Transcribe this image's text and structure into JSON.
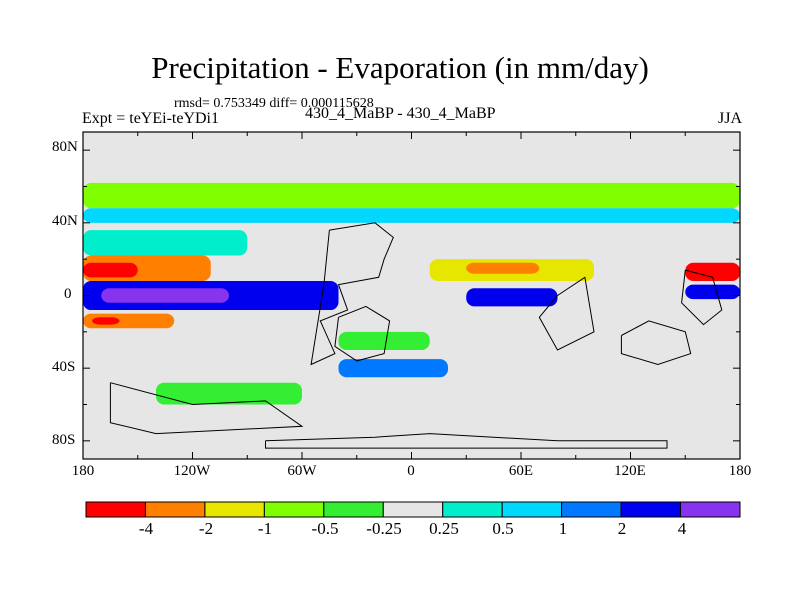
{
  "title": "Precipitation - Evaporation (in mm/day)",
  "stats_line": "rmsd= 0.753349 diff= 0.000115628",
  "left_label": "Expt = teYEi-teYDi1",
  "center_label": "430_4_MaBP - 430_4_MaBP",
  "right_label": "JJA",
  "lat_ticks": [
    "80N",
    "40N",
    "0",
    "40S",
    "80S"
  ],
  "lon_ticks": [
    "180",
    "120W",
    "60W",
    "0",
    "60E",
    "120E",
    "180"
  ],
  "colorbar": {
    "labels": [
      "-4",
      "-2",
      "-1",
      "-0.5",
      "-0.25",
      "0.25",
      "0.5",
      "1",
      "2",
      "4"
    ],
    "colors": [
      "#ff0000",
      "#ff8000",
      "#e6e600",
      "#80ff00",
      "#33ee33",
      "#e6e6e6",
      "#00eecc",
      "#00d8ff",
      "#0078ff",
      "#0000ee",
      "#8833ee"
    ]
  },
  "chart_data": {
    "type": "heatmap",
    "variable": "Precipitation - Evaporation",
    "units": "mm/day",
    "season": "JJA",
    "x_range": [
      -180,
      180
    ],
    "y_range": [
      -90,
      90
    ],
    "bands": [
      {
        "lat": [
          48,
          62
        ],
        "lon": [
          -180,
          180
        ],
        "level": 3
      },
      {
        "lat": [
          40,
          48
        ],
        "lon": [
          -180,
          180
        ],
        "level": 7
      },
      {
        "lat": [
          22,
          36
        ],
        "lon": [
          -180,
          -90
        ],
        "level": 6
      },
      {
        "lat": [
          8,
          22
        ],
        "lon": [
          -180,
          -110
        ],
        "level": 1
      },
      {
        "lat": [
          10,
          18
        ],
        "lon": [
          -180,
          -150
        ],
        "level": 0
      },
      {
        "lat": [
          -8,
          8
        ],
        "lon": [
          -180,
          -40
        ],
        "level": 9
      },
      {
        "lat": [
          -4,
          4
        ],
        "lon": [
          -170,
          -100
        ],
        "level": 10
      },
      {
        "lat": [
          -18,
          -10
        ],
        "lon": [
          -180,
          -130
        ],
        "level": 1
      },
      {
        "lat": [
          -16,
          -12
        ],
        "lon": [
          -175,
          -160
        ],
        "level": 0
      },
      {
        "lat": [
          8,
          20
        ],
        "lon": [
          10,
          100
        ],
        "level": 2
      },
      {
        "lat": [
          12,
          18
        ],
        "lon": [
          30,
          70
        ],
        "level": 1
      },
      {
        "lat": [
          -6,
          4
        ],
        "lon": [
          30,
          80
        ],
        "level": 9
      },
      {
        "lat": [
          -30,
          -20
        ],
        "lon": [
          -40,
          10
        ],
        "level": 4
      },
      {
        "lat": [
          -45,
          -35
        ],
        "lon": [
          -40,
          20
        ],
        "level": 8
      },
      {
        "lat": [
          -60,
          -48
        ],
        "lon": [
          -140,
          -60
        ],
        "level": 4
      },
      {
        "lat": [
          8,
          18
        ],
        "lon": [
          150,
          180
        ],
        "level": 0
      },
      {
        "lat": [
          -2,
          6
        ],
        "lon": [
          150,
          180
        ],
        "level": 9
      }
    ]
  }
}
